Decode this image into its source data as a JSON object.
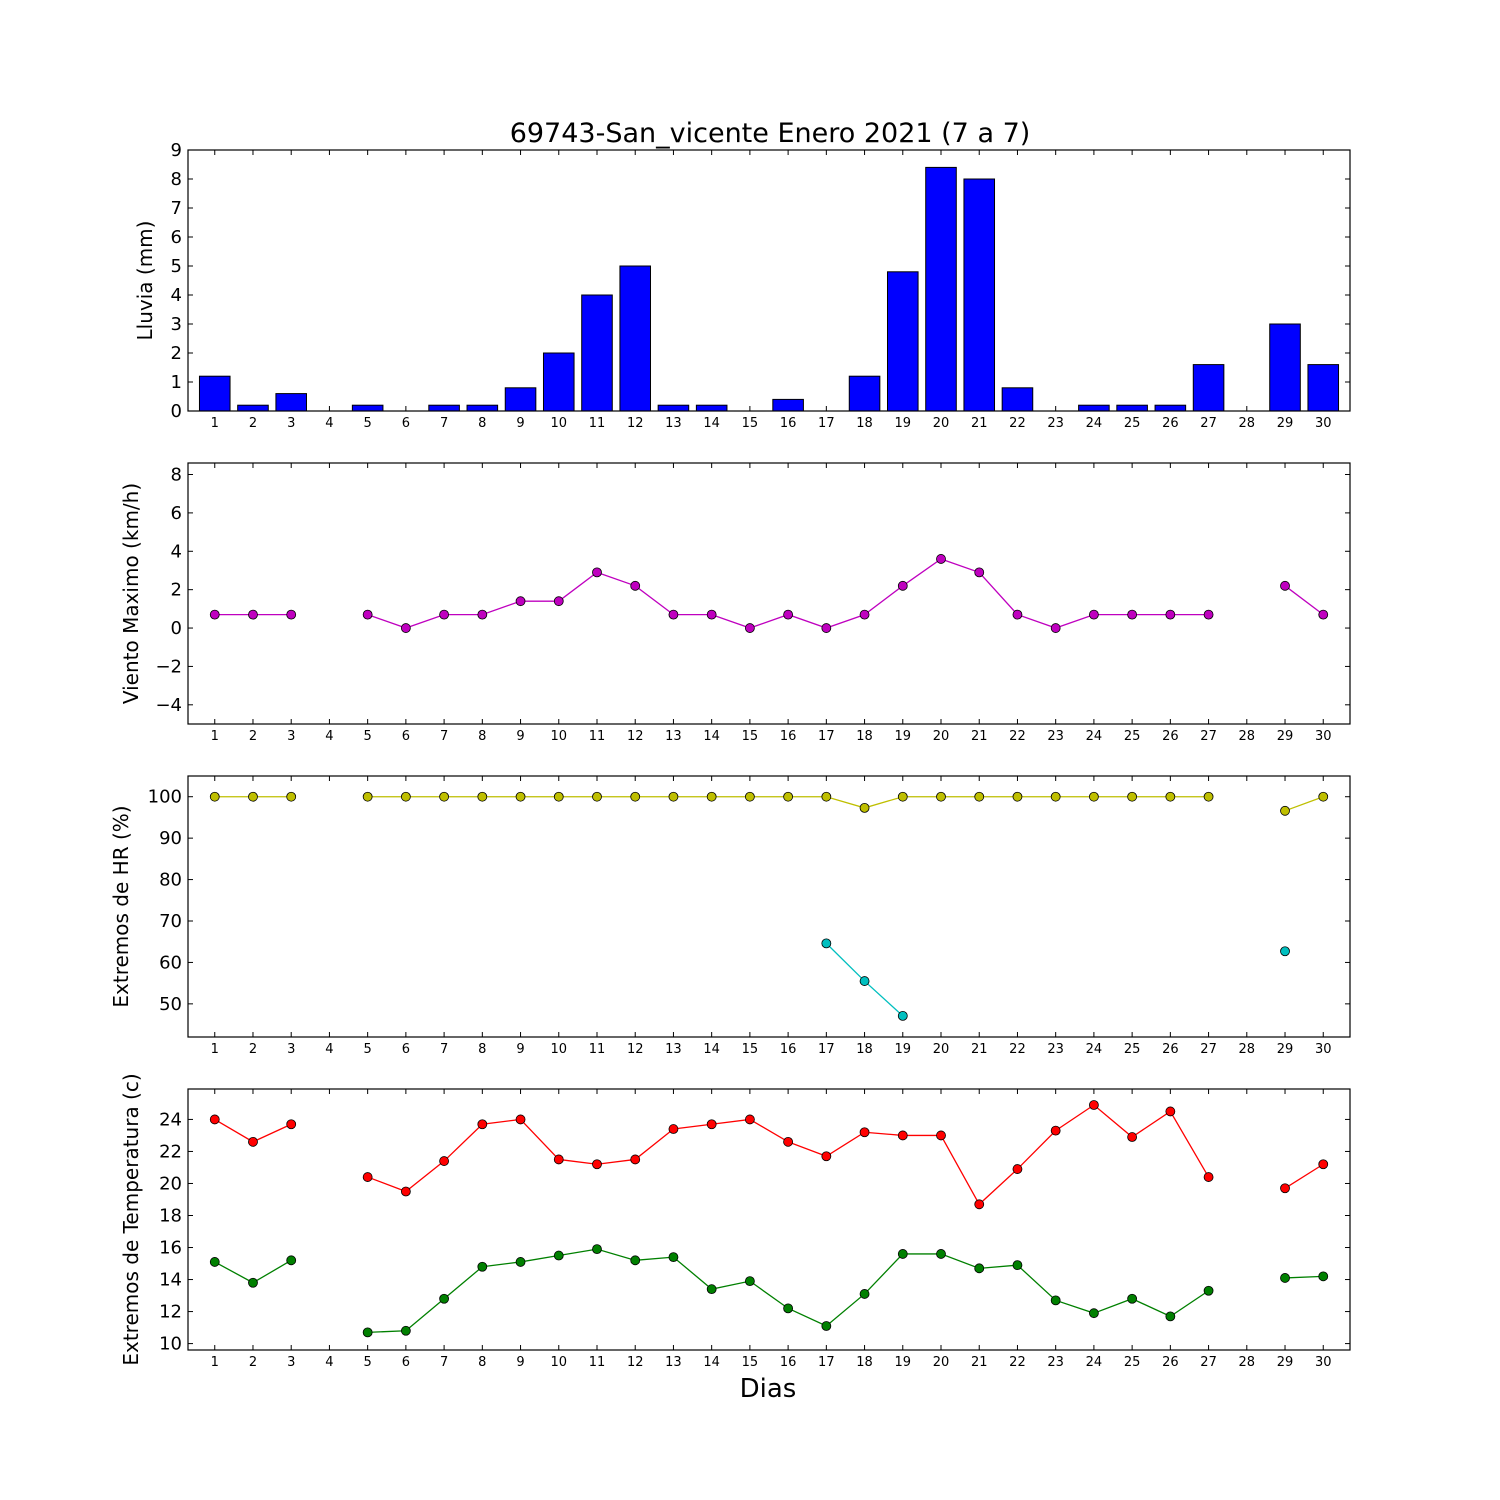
{
  "chart_data": [
    {
      "type": "bar",
      "title": "69743-San_vicente Enero 2021  (7 a 7)",
      "ylabel": "Lluvia (mm)",
      "ylim": [
        0,
        9
      ],
      "yticks": [
        "0",
        "1",
        "2",
        "3",
        "4",
        "5",
        "6",
        "7",
        "8",
        "9"
      ],
      "categories": [
        "1",
        "2",
        "3",
        "4",
        "5",
        "6",
        "7",
        "8",
        "9",
        "10",
        "11",
        "12",
        "13",
        "14",
        "15",
        "16",
        "17",
        "18",
        "19",
        "20",
        "21",
        "22",
        "23",
        "24",
        "25",
        "26",
        "27",
        "28",
        "29",
        "30"
      ],
      "values": [
        1.2,
        0.2,
        0.6,
        null,
        0.2,
        0.0,
        0.2,
        0.2,
        0.8,
        2.0,
        4.0,
        5.0,
        0.2,
        0.2,
        0.0,
        0.4,
        null,
        1.2,
        4.8,
        8.4,
        8.0,
        0.8,
        null,
        0.2,
        0.2,
        0.2,
        1.6,
        null,
        3.0,
        1.6
      ],
      "color": "#0000ff"
    },
    {
      "type": "line",
      "ylabel": "Viento Maximo (km/h)",
      "ylim": [
        -5,
        8.6
      ],
      "yticks": [
        "−4",
        "−2",
        "0",
        "2",
        "4",
        "6",
        "8"
      ],
      "categories": [
        "1",
        "2",
        "3",
        "4",
        "5",
        "6",
        "7",
        "8",
        "9",
        "10",
        "11",
        "12",
        "13",
        "14",
        "15",
        "16",
        "17",
        "18",
        "19",
        "20",
        "21",
        "22",
        "23",
        "24",
        "25",
        "26",
        "27",
        "28",
        "29",
        "30"
      ],
      "series": [
        {
          "color": "#bf00bf",
          "values": [
            0.7,
            0.7,
            0.7,
            null,
            0.7,
            0.0,
            0.7,
            0.7,
            1.4,
            1.4,
            2.9,
            2.2,
            0.7,
            0.7,
            0.0,
            0.7,
            0.0,
            0.7,
            2.2,
            3.6,
            2.9,
            0.7,
            0.0,
            0.7,
            0.7,
            0.7,
            0.7,
            null,
            2.2,
            0.7
          ]
        }
      ]
    },
    {
      "type": "line",
      "ylabel": "Extremos de HR (%)",
      "ylim": [
        42,
        105
      ],
      "yticks": [
        "50",
        "60",
        "70",
        "80",
        "90",
        "100"
      ],
      "categories": [
        "1",
        "2",
        "3",
        "4",
        "5",
        "6",
        "7",
        "8",
        "9",
        "10",
        "11",
        "12",
        "13",
        "14",
        "15",
        "16",
        "17",
        "18",
        "19",
        "20",
        "21",
        "22",
        "23",
        "24",
        "25",
        "26",
        "27",
        "28",
        "29",
        "30"
      ],
      "series": [
        {
          "color": "#bfbf00",
          "values": [
            100,
            100,
            100,
            null,
            100,
            100,
            100,
            100,
            100,
            100,
            100,
            100,
            100,
            100,
            100,
            100,
            100,
            97.3,
            100,
            100,
            100,
            100,
            100,
            100,
            100,
            100,
            100,
            null,
            96.6,
            100
          ]
        },
        {
          "color": "#00bfbf",
          "values": [
            null,
            null,
            null,
            null,
            null,
            null,
            null,
            null,
            null,
            null,
            null,
            null,
            null,
            null,
            null,
            null,
            64.6,
            55.5,
            47.1,
            null,
            null,
            null,
            null,
            null,
            null,
            null,
            null,
            null,
            62.7,
            null
          ]
        }
      ]
    },
    {
      "type": "line",
      "ylabel": "Extremos de Temperatura (c)",
      "xlabel": "Dias",
      "ylim": [
        9.6,
        25.9
      ],
      "yticks": [
        "10",
        "12",
        "14",
        "16",
        "18",
        "20",
        "22",
        "24"
      ],
      "categories": [
        "1",
        "2",
        "3",
        "4",
        "5",
        "6",
        "7",
        "8",
        "9",
        "10",
        "11",
        "12",
        "13",
        "14",
        "15",
        "16",
        "17",
        "18",
        "19",
        "20",
        "21",
        "22",
        "23",
        "24",
        "25",
        "26",
        "27",
        "28",
        "29",
        "30"
      ],
      "series": [
        {
          "color": "#ff0000",
          "values": [
            24.0,
            22.6,
            23.7,
            null,
            20.4,
            19.5,
            21.4,
            23.7,
            24.0,
            21.5,
            21.2,
            21.5,
            23.4,
            23.7,
            24.0,
            22.6,
            21.7,
            23.2,
            23.0,
            23.0,
            18.7,
            20.9,
            23.3,
            24.9,
            22.9,
            24.5,
            20.4,
            null,
            19.7,
            21.2
          ]
        },
        {
          "color": "#008000",
          "values": [
            15.1,
            13.8,
            15.2,
            null,
            10.7,
            10.8,
            12.8,
            14.8,
            15.1,
            15.5,
            15.9,
            15.2,
            15.4,
            13.4,
            13.9,
            12.2,
            11.1,
            13.1,
            15.6,
            15.6,
            14.7,
            14.9,
            12.7,
            11.9,
            12.8,
            11.7,
            13.3,
            null,
            14.1,
            14.2
          ]
        }
      ]
    }
  ]
}
